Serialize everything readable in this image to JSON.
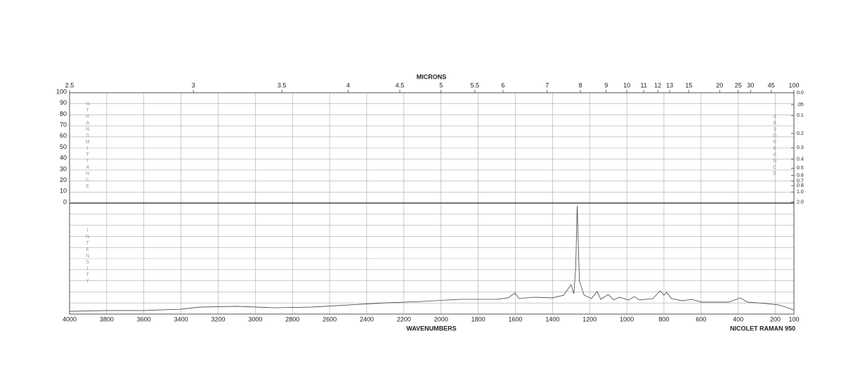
{
  "chart_data": {
    "type": "line",
    "x2label": "MICRONS",
    "xlabel": "WAVENUMBERS",
    "instrument": "NICOLET RAMAN 950",
    "ylabel": "%TRANSMITTANCE",
    "y2label": "ABSORBANCE",
    "intensity_label": "INTENSITY",
    "xlim": [
      4000,
      100
    ],
    "xticks": [
      4000,
      3800,
      3600,
      3400,
      3200,
      3000,
      2800,
      2600,
      2400,
      2200,
      2000,
      1800,
      1600,
      1400,
      1200,
      1000,
      800,
      600,
      400,
      200,
      100
    ],
    "x2ticks": [
      2.5,
      3,
      3.5,
      4,
      4.5,
      5,
      5.5,
      6,
      7,
      8,
      9,
      10,
      11,
      12,
      13,
      15,
      20,
      25,
      30,
      45,
      100
    ],
    "ylim": [
      0,
      100
    ],
    "yticks": [
      100,
      90,
      80,
      70,
      60,
      50,
      40,
      30,
      20,
      10,
      0
    ],
    "y2ticks": [
      {
        "value": 0,
        "label": "0.0"
      },
      {
        "value": 0.05,
        "label": ".05"
      },
      0.1,
      0.2,
      0.3,
      0.4,
      0.5,
      0.6,
      0.7,
      0.8,
      {
        "value": 1,
        "label": "1.0"
      },
      {
        "value": 2,
        "label": "2.0"
      }
    ],
    "intensity_lim": [
      0,
      100
    ],
    "intensity_grid": [
      0,
      10,
      20,
      30,
      40,
      50,
      60,
      70,
      80,
      90,
      100
    ],
    "grid": true,
    "color": "#444",
    "x": [
      4000,
      3800,
      3600,
      3400,
      3300,
      3100,
      2900,
      2700,
      2500,
      2300,
      2100,
      1900,
      1700,
      1640,
      1602,
      1580,
      1500,
      1400,
      1340,
      1300,
      1285,
      1275,
      1267,
      1255,
      1230,
      1190,
      1160,
      1140,
      1100,
      1070,
      1040,
      990,
      960,
      930,
      860,
      820,
      800,
      785,
      760,
      700,
      650,
      600,
      450,
      390,
      350,
      250,
      180,
      100
    ],
    "values": [
      2.5,
      3.2,
      3.2,
      4.4,
      6.3,
      7,
      5.7,
      6.3,
      8.2,
      10.1,
      11.4,
      13.3,
      13.3,
      14.6,
      19,
      14,
      15.2,
      14.6,
      17,
      26.6,
      18.4,
      42,
      97.5,
      29.7,
      17,
      14,
      20.3,
      13.3,
      17.7,
      12.7,
      15.2,
      12.7,
      15.8,
      12.7,
      14,
      20.9,
      17,
      19.6,
      14,
      12,
      13.3,
      10.8,
      10.8,
      14.6,
      10.8,
      9.5,
      8.2,
      3.8
    ]
  }
}
